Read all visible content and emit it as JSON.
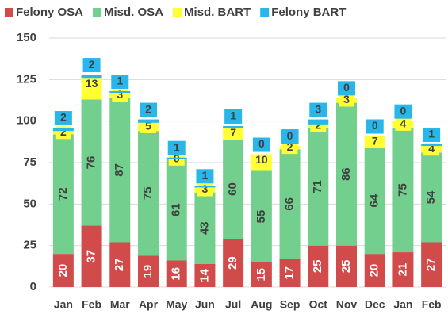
{
  "chart_data": {
    "type": "stacked_bar",
    "categories": [
      "Jan",
      "Feb",
      "Mar",
      "Apr",
      "May",
      "Jun",
      "Jul",
      "Aug",
      "Sep",
      "Oct",
      "Nov",
      "Dec",
      "Jan",
      "Feb"
    ],
    "series": [
      {
        "name": "Felony OSA",
        "color": "#d24b4b",
        "values": [
          20,
          37,
          27,
          19,
          16,
          14,
          29,
          15,
          17,
          25,
          25,
          20,
          21,
          27
        ]
      },
      {
        "name": "Misd. OSA",
        "color": "#72cf8e",
        "values": [
          72,
          76,
          87,
          75,
          61,
          43,
          60,
          55,
          66,
          71,
          86,
          64,
          75,
          54
        ]
      },
      {
        "name": "Misd. BART",
        "color": "#ffff33",
        "values": [
          2,
          13,
          3,
          5,
          0,
          3,
          7,
          10,
          2,
          2,
          3,
          7,
          4,
          4
        ]
      },
      {
        "name": "Felony BART",
        "color": "#29b6e8",
        "values": [
          2,
          2,
          1,
          2,
          1,
          1,
          1,
          0,
          0,
          3,
          0,
          0,
          0,
          1
        ]
      }
    ],
    "ylim": [
      0,
      150
    ],
    "yticks": [
      0,
      25,
      50,
      75,
      100,
      125,
      150
    ],
    "grid": true,
    "legend": "top"
  }
}
